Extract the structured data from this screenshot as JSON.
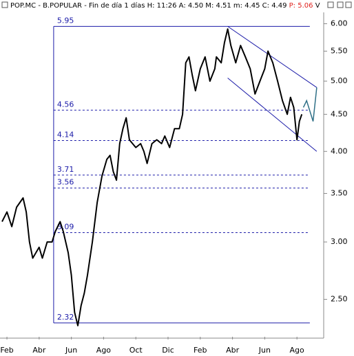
{
  "chart_data": {
    "type": "line",
    "header": {
      "text": "POP.MC - B.POPULAR - Fin de día 1 días H: 11:26 A: 4.50 M: 4.51 m: 4.45 C: 4.49",
      "highlight": "P: 5.06",
      "highlight_color": "#e0201c",
      "suffix": "V"
    },
    "log_scale": true,
    "xlim": [
      -0.43,
      19.66
    ],
    "ylim": [
      2.22,
      6.47
    ],
    "xticks": [
      {
        "value": 0,
        "label": "Feb"
      },
      {
        "value": 2,
        "label": "Abr"
      },
      {
        "value": 4,
        "label": "Jun"
      },
      {
        "value": 6,
        "label": "Ago"
      },
      {
        "value": 8,
        "label": "Oct"
      },
      {
        "value": 10,
        "label": "Dic"
      },
      {
        "value": 12,
        "label": "Feb"
      },
      {
        "value": 14,
        "label": "Abr"
      },
      {
        "value": 16,
        "label": "Jun"
      },
      {
        "value": 18,
        "label": "Ago"
      }
    ],
    "yticks": [
      {
        "value": 6,
        "label": "6.00"
      },
      {
        "value": 5.5,
        "label": "5.50"
      },
      {
        "value": 5,
        "label": "5.00"
      },
      {
        "value": 4.5,
        "label": "4.50"
      },
      {
        "value": 4,
        "label": "4.00"
      },
      {
        "value": 3.5,
        "label": "3.50"
      },
      {
        "value": 3,
        "label": "3.00"
      },
      {
        "value": 2.5,
        "label": "2.50"
      }
    ],
    "series": [
      {
        "color": "#000000",
        "x": [
          -0.3,
          0,
          0.3,
          0.6,
          1.0,
          1.2,
          1.4,
          1.6,
          1.8,
          2.0,
          2.2,
          2.5,
          2.8,
          3.0,
          3.3,
          3.5,
          3.8,
          4.0,
          4.2,
          4.4,
          4.6,
          4.8,
          5.0,
          5.3,
          5.6,
          5.9,
          6.2,
          6.4,
          6.6,
          6.8,
          7.0,
          7.2,
          7.4,
          7.6,
          7.8,
          8.0,
          8.3,
          8.5,
          8.7,
          9.0,
          9.3,
          9.6,
          9.8,
          10.1,
          10.4,
          10.7,
          10.9,
          11.1,
          11.3,
          11.5,
          11.7,
          12.0,
          12.3,
          12.6,
          12.9,
          13.0,
          13.3,
          13.5,
          13.7,
          13.9,
          14.2,
          14.5,
          14.8,
          15.1,
          15.4,
          15.7,
          16.0,
          16.2,
          16.5,
          16.8,
          17.1,
          17.4,
          17.6,
          17.8,
          18.0,
          18.15,
          18.3
        ],
        "values": [
          3.2,
          3.3,
          3.15,
          3.35,
          3.45,
          3.3,
          3.0,
          2.85,
          2.9,
          2.95,
          2.85,
          3.0,
          3.0,
          3.1,
          3.2,
          3.1,
          2.9,
          2.7,
          2.4,
          2.3,
          2.45,
          2.55,
          2.7,
          3.0,
          3.4,
          3.7,
          3.9,
          3.95,
          3.75,
          3.65,
          4.1,
          4.3,
          4.45,
          4.15,
          4.1,
          4.05,
          4.1,
          4.0,
          3.85,
          4.1,
          4.15,
          4.1,
          4.2,
          4.05,
          4.3,
          4.3,
          4.5,
          5.3,
          5.4,
          5.1,
          4.85,
          5.2,
          5.4,
          5.0,
          5.2,
          5.4,
          5.3,
          5.65,
          5.9,
          5.6,
          5.3,
          5.6,
          5.4,
          5.2,
          4.8,
          5.0,
          5.2,
          5.5,
          5.3,
          5.0,
          4.7,
          4.5,
          4.75,
          4.6,
          4.15,
          4.4,
          4.5
        ]
      }
    ],
    "levels": [
      {
        "value": 5.95,
        "label": "5.95",
        "dashed": false
      },
      {
        "value": 4.56,
        "label": "4.56",
        "dashed": true
      },
      {
        "value": 4.14,
        "label": "4.14",
        "dashed": true
      },
      {
        "value": 3.71,
        "label": "3.71",
        "dashed": true
      },
      {
        "value": 3.56,
        "label": "3.56",
        "dashed": true
      },
      {
        "value": 3.09,
        "label": "3.09",
        "dashed": true
      },
      {
        "value": 2.32,
        "label": "2.32",
        "dashed": false
      }
    ],
    "level_color": "#1a1aa8",
    "level_range": [
      2.9,
      18.8
    ],
    "trendlines": [
      {
        "x": [
          13.7,
          19.23
        ],
        "values": [
          5.95,
          4.9
        ]
      },
      {
        "x": [
          13.7,
          19.23
        ],
        "values": [
          5.05,
          4.0
        ]
      }
    ],
    "projection": {
      "color": "#2e6f86",
      "x": [
        18.4,
        18.6,
        19.0,
        19.23
      ],
      "values": [
        4.6,
        4.7,
        4.4,
        4.9
      ]
    }
  }
}
